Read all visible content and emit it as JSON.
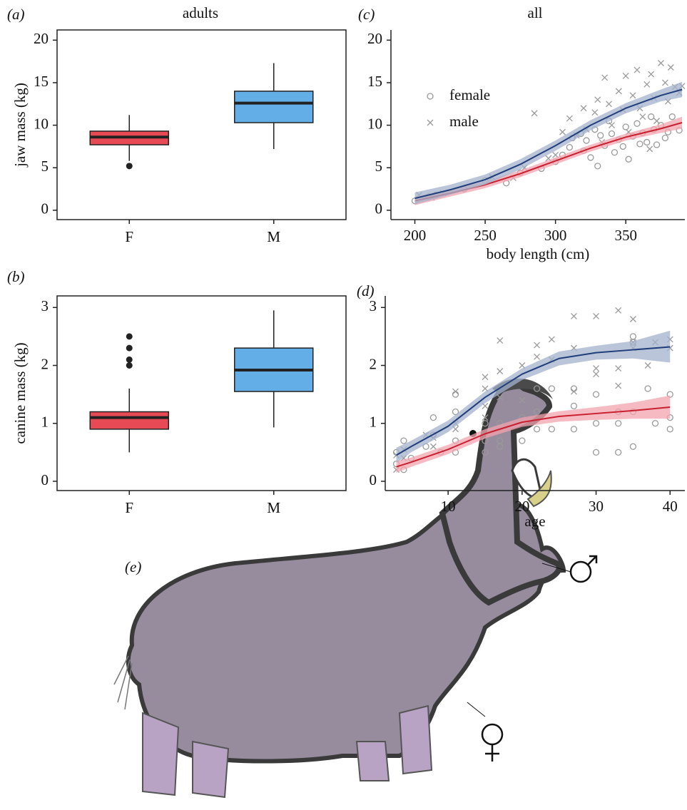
{
  "chart_data": [
    {
      "type": "box",
      "label": "(a)",
      "title": "adults",
      "ylabel": "jaw mass (kg)",
      "categories": [
        "F",
        "M"
      ],
      "ylim": [
        -1.1,
        21.2
      ],
      "yticks": [
        0,
        5,
        10,
        15,
        20
      ],
      "boxes": [
        {
          "low": 5.8,
          "q1": 7.7,
          "median": 8.6,
          "q3": 9.3,
          "high": 11.2,
          "outliers": [
            5.2
          ],
          "color": "#e84a55"
        },
        {
          "low": 7.2,
          "q1": 10.3,
          "median": 12.6,
          "q3": 14.0,
          "high": 17.3,
          "outliers": [],
          "color": "#64aee8"
        }
      ]
    },
    {
      "type": "box",
      "label": "(b)",
      "ylabel": "canine mass (kg)",
      "categories": [
        "F",
        "M"
      ],
      "ylim": [
        -0.16,
        3.2
      ],
      "yticks": [
        0,
        1,
        2,
        3
      ],
      "boxes": [
        {
          "low": 0.5,
          "q1": 0.9,
          "median": 1.1,
          "q3": 1.2,
          "high": 1.6,
          "outliers": [
            2.0,
            2.1,
            2.3,
            2.5
          ],
          "color": "#e84a55"
        },
        {
          "low": 0.93,
          "q1": 1.55,
          "median": 1.92,
          "q3": 2.3,
          "high": 2.95,
          "outliers": [],
          "color": "#64aee8"
        }
      ]
    },
    {
      "type": "scatter",
      "label": "(c)",
      "title": "all",
      "xlabel": "body length (cm)",
      "xlim": [
        183,
        392
      ],
      "xticks": [
        200,
        250,
        300,
        350
      ],
      "ylim": [
        -1.1,
        21.2
      ],
      "yticks": [
        0,
        5,
        10,
        15,
        20
      ],
      "legend": true,
      "legend_position": "upper left",
      "point_color": "#9a9a9a",
      "series": [
        {
          "name": "female",
          "marker": "circle",
          "color": "#c8202f",
          "band_color": "#f3a3ad",
          "x": [
            200,
            210,
            215,
            235,
            250,
            265,
            275,
            290,
            300,
            305,
            310,
            312,
            318,
            320,
            322,
            325,
            328,
            330,
            332,
            335,
            338,
            340,
            342,
            345,
            348,
            350,
            352,
            355,
            358,
            360,
            362,
            365,
            368,
            370,
            372,
            375,
            378,
            380,
            383,
            388
          ],
          "y": [
            1.1,
            1.6,
            1.8,
            2.5,
            3.5,
            3.2,
            4.4,
            4.9,
            5.7,
            6.5,
            7.4,
            8.5,
            9.0,
            7.0,
            8.2,
            6.2,
            9.5,
            5.2,
            8.8,
            7.6,
            10.5,
            9.0,
            6.8,
            8.3,
            7.5,
            9.8,
            6.0,
            8.7,
            10.2,
            7.8,
            9.1,
            8.0,
            11.0,
            9.5,
            7.7,
            10.0,
            8.5,
            9.2,
            11.0,
            9.4
          ],
          "fit": {
            "x": [
              200,
              225,
              250,
              275,
              300,
              325,
              350,
              375,
              390
            ],
            "y": [
              1.1,
              2.0,
              3.0,
              4.3,
              5.8,
              7.3,
              8.6,
              9.6,
              10.3
            ],
            "lower": [
              0.6,
              1.6,
              2.6,
              3.9,
              5.4,
              6.9,
              8.2,
              9.1,
              9.6
            ],
            "upper": [
              1.6,
              2.4,
              3.4,
              4.7,
              6.2,
              7.7,
              9.0,
              10.1,
              11.0
            ]
          }
        },
        {
          "name": "male",
          "marker": "cross",
          "color": "#1f3e7a",
          "band_color": "#a3b2cc",
          "x": [
            203,
            212,
            220,
            255,
            270,
            278,
            285,
            295,
            300,
            305,
            310,
            315,
            320,
            322,
            328,
            330,
            333,
            335,
            338,
            340,
            345,
            348,
            350,
            352,
            355,
            358,
            360,
            362,
            365,
            368,
            370,
            372,
            375,
            378,
            380,
            382,
            385,
            388,
            390,
            367
          ],
          "y": [
            1.8,
            1.5,
            2.0,
            3.9,
            3.8,
            5.0,
            11.4,
            6.1,
            6.5,
            9.2,
            10.8,
            8.8,
            12.0,
            9.5,
            11.5,
            13.0,
            8.0,
            15.6,
            12.5,
            10.0,
            14.0,
            11.8,
            15.8,
            9.2,
            13.5,
            16.5,
            12.0,
            11.0,
            14.8,
            16.0,
            13.2,
            10.5,
            17.3,
            15.0,
            12.8,
            16.8,
            14.5,
            13.8,
            14.6,
            7.2
          ],
          "fit": {
            "x": [
              200,
              225,
              250,
              275,
              300,
              325,
              350,
              375,
              390
            ],
            "y": [
              1.4,
              2.4,
              3.6,
              5.4,
              7.6,
              10.0,
              12.0,
              13.5,
              14.2
            ],
            "lower": [
              0.7,
              1.8,
              3.0,
              4.8,
              7.0,
              9.4,
              11.4,
              12.8,
              13.3
            ],
            "upper": [
              2.1,
              3.0,
              4.2,
              6.0,
              8.2,
              10.6,
              12.6,
              14.2,
              15.1
            ]
          }
        }
      ]
    },
    {
      "type": "scatter",
      "label": "(d)",
      "xlabel": "age",
      "xlim": [
        1.5,
        42
      ],
      "xticks": [
        10,
        20,
        30,
        40
      ],
      "ylim": [
        -0.16,
        3.2
      ],
      "yticks": [
        0,
        1,
        2,
        3
      ],
      "legend": false,
      "point_color": "#9a9a9a",
      "series": [
        {
          "marker": "circle",
          "color": "#c8202f",
          "band_color": "#f3a3ad",
          "x": [
            3,
            3,
            4,
            4,
            5,
            7,
            8,
            8,
            9,
            11,
            11,
            11,
            11,
            15,
            15,
            15,
            17,
            17,
            17,
            20,
            20,
            22,
            22,
            22,
            24,
            24,
            27,
            27,
            27,
            30,
            30,
            30,
            33,
            33,
            33,
            35,
            35,
            35,
            35,
            37,
            38,
            40,
            40,
            40
          ],
          "y": [
            0.5,
            0.3,
            0.7,
            0.2,
            0.4,
            0.6,
            1.1,
            0.8,
            0.5,
            1.5,
            1.2,
            0.7,
            0.5,
            1.0,
            0.7,
            0.5,
            1.0,
            0.7,
            0.6,
            1.1,
            0.7,
            1.6,
            1.2,
            0.9,
            1.6,
            0.9,
            1.6,
            1.3,
            0.9,
            1.5,
            1.0,
            0.5,
            1.2,
            1.0,
            0.5,
            2.5,
            2.4,
            1.2,
            0.6,
            1.6,
            1.0,
            1.5,
            1.1,
            0.9
          ],
          "fit": {
            "x": [
              3,
              5,
              10,
              15,
              20,
              25,
              30,
              35,
              40
            ],
            "y": [
              0.25,
              0.33,
              0.55,
              0.82,
              1.02,
              1.12,
              1.17,
              1.22,
              1.28
            ],
            "lower": [
              0.15,
              0.25,
              0.47,
              0.74,
              0.94,
              1.03,
              1.06,
              1.08,
              1.08
            ],
            "upper": [
              0.35,
              0.41,
              0.63,
              0.9,
              1.1,
              1.21,
              1.28,
              1.36,
              1.48
            ]
          }
        },
        {
          "marker": "cross",
          "color": "#1f3e7a",
          "band_color": "#a3b2cc",
          "x": [
            3,
            3,
            4,
            4,
            7,
            8,
            8,
            11,
            11,
            11,
            15,
            15,
            15,
            15,
            17,
            17,
            17,
            20,
            20,
            22,
            22,
            24,
            24,
            27,
            27,
            27,
            30,
            30,
            30,
            33,
            33,
            33,
            35,
            35,
            35,
            37,
            38,
            40,
            40
          ],
          "y": [
            0.2,
            0.45,
            0.55,
            0.4,
            0.8,
            0.75,
            0.6,
            1.55,
            1.0,
            0.9,
            1.8,
            1.6,
            1.3,
            1.1,
            2.43,
            1.9,
            1.45,
            2.0,
            1.4,
            2.35,
            2.15,
            2.45,
            2.1,
            2.85,
            2.3,
            1.55,
            2.85,
            1.95,
            1.85,
            2.95,
            1.95,
            1.65,
            2.8,
            2.4,
            2.3,
            2.0,
            2.4,
            2.45,
            2.3
          ],
          "fit": {
            "x": [
              3,
              5,
              10,
              15,
              20,
              25,
              30,
              35,
              40
            ],
            "y": [
              0.45,
              0.6,
              0.95,
              1.45,
              1.85,
              2.12,
              2.22,
              2.27,
              2.32
            ],
            "lower": [
              0.32,
              0.5,
              0.85,
              1.35,
              1.75,
              2.0,
              2.1,
              2.12,
              2.05
            ],
            "upper": [
              0.58,
              0.7,
              1.05,
              1.55,
              1.95,
              2.24,
              2.34,
              2.42,
              2.6
            ]
          }
        }
      ]
    }
  ],
  "illustration": {
    "label": "(e)"
  }
}
